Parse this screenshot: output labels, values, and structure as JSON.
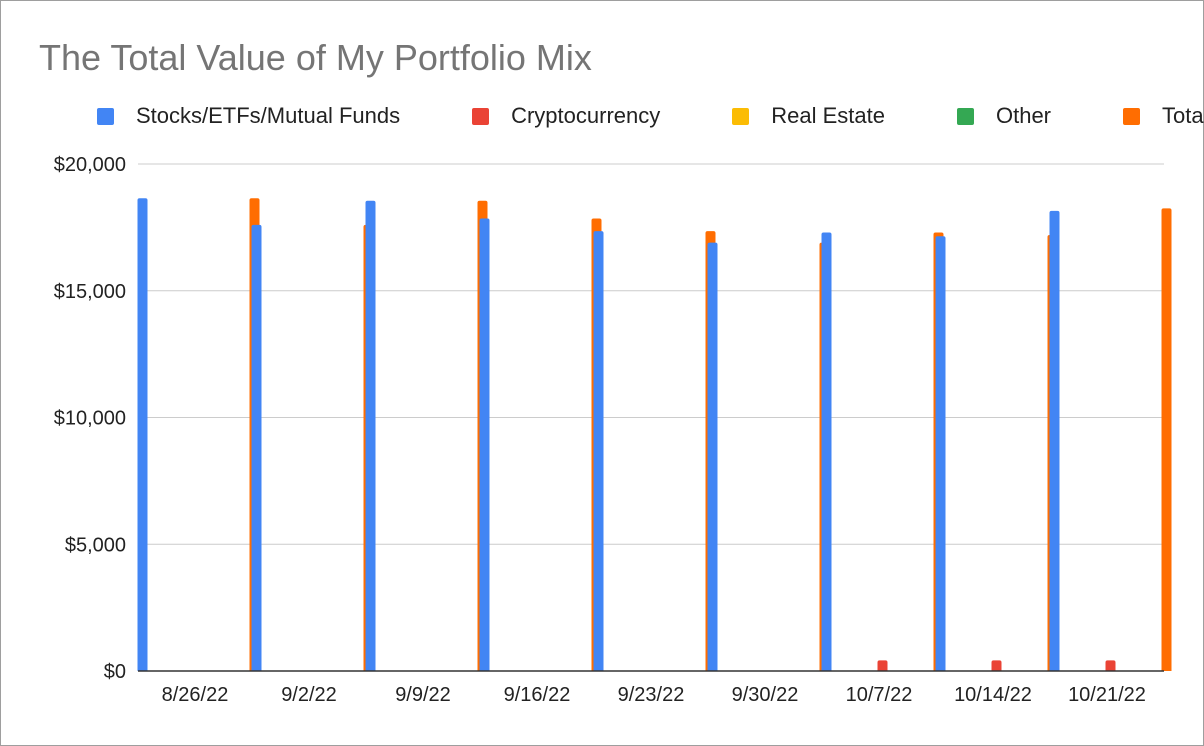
{
  "chart_data": {
    "type": "bar",
    "title": "The Total Value of My Portfolio Mix",
    "categories": [
      "8/26/22",
      "9/2/22",
      "9/9/22",
      "9/16/22",
      "9/23/22",
      "9/30/22",
      "10/7/22",
      "10/14/22",
      "10/21/22"
    ],
    "series": [
      {
        "name": "Stocks/ETFs/Mutual Funds",
        "color": "#4285f4",
        "values": [
          18650,
          17600,
          18550,
          17850,
          17350,
          16900,
          17300,
          17150,
          18150
        ]
      },
      {
        "name": "Cryptocurrency",
        "color": "#ea4335",
        "values": [
          0,
          0,
          0,
          0,
          0,
          0,
          420,
          420,
          420
        ]
      },
      {
        "name": "Real Estate",
        "color": "#fbbc04",
        "values": [
          0,
          0,
          0,
          0,
          0,
          0,
          0,
          0,
          0
        ]
      },
      {
        "name": "Other",
        "color": "#34a853",
        "values": [
          0,
          0,
          0,
          0,
          0,
          0,
          0,
          0,
          0
        ]
      },
      {
        "name": "Total",
        "color": "#ff6d01",
        "values": [
          18650,
          17600,
          18550,
          17850,
          17350,
          16900,
          17300,
          17200,
          18250
        ]
      }
    ],
    "ylim": [
      0,
      20000
    ],
    "yticks": [
      0,
      5000,
      10000,
      15000,
      20000
    ],
    "ytick_labels": [
      "$0",
      "$5,000",
      "$10,000",
      "$15,000",
      "$20,000"
    ],
    "xlabel": "",
    "ylabel": "",
    "grid": true,
    "legend_position": "top"
  }
}
